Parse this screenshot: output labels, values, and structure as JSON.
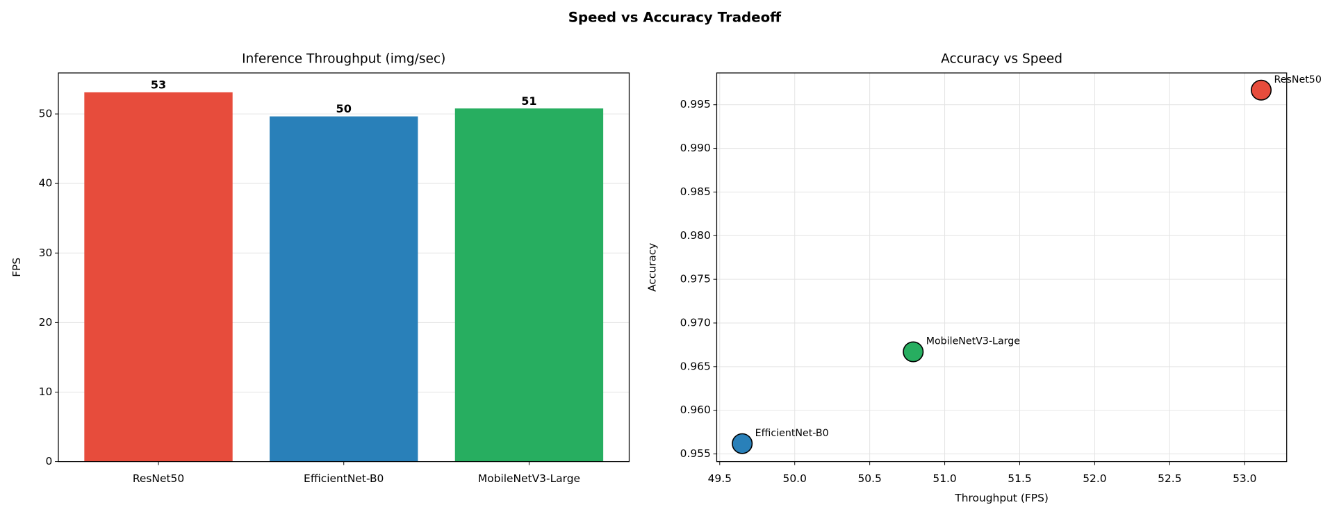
{
  "title": "Speed vs Accuracy Tradeoff",
  "chart_data": [
    {
      "type": "bar",
      "title": "Inference Throughput (img/sec)",
      "ylabel": "FPS",
      "categories": [
        "ResNet50",
        "EfficientNet-B0",
        "MobileNetV3-Large"
      ],
      "values": [
        53.11,
        49.65,
        50.79
      ],
      "value_labels": [
        "53",
        "50",
        "51"
      ],
      "colors": [
        "#e74c3c",
        "#2980b9",
        "#27ae60"
      ],
      "ylim": [
        0,
        55.9
      ],
      "yticks": [
        0,
        10,
        20,
        30,
        40,
        50
      ],
      "grid": true
    },
    {
      "type": "scatter",
      "title": "Accuracy vs Speed",
      "xlabel": "Throughput (FPS)",
      "ylabel": "Accuracy",
      "labels": [
        "ResNet50",
        "EfficientNet-B0",
        "MobileNetV3-Large"
      ],
      "x": [
        53.11,
        49.65,
        50.79
      ],
      "values": [
        0.99667,
        0.95618,
        0.9667
      ],
      "colors": [
        "#e74c3c",
        "#2980b9",
        "#27ae60"
      ],
      "xlim": [
        49.48,
        53.28
      ],
      "ylim": [
        0.95412,
        0.99864
      ],
      "xticks": [
        49.5,
        {
          "value": 50,
          "label": "50.0"
        },
        50.5,
        {
          "value": 51,
          "label": "51.0"
        },
        51.5,
        {
          "value": 52,
          "label": "52.0"
        },
        52.5,
        {
          "value": 53,
          "label": "53.0"
        }
      ],
      "yticks": [
        0.955,
        {
          "value": 0.96,
          "label": "0.960"
        },
        0.965,
        {
          "value": 0.97,
          "label": "0.970"
        },
        0.975,
        {
          "value": 0.98,
          "label": "0.980"
        },
        0.985,
        {
          "value": 0.99,
          "label": "0.990"
        },
        0.995
      ],
      "grid": true
    }
  ]
}
